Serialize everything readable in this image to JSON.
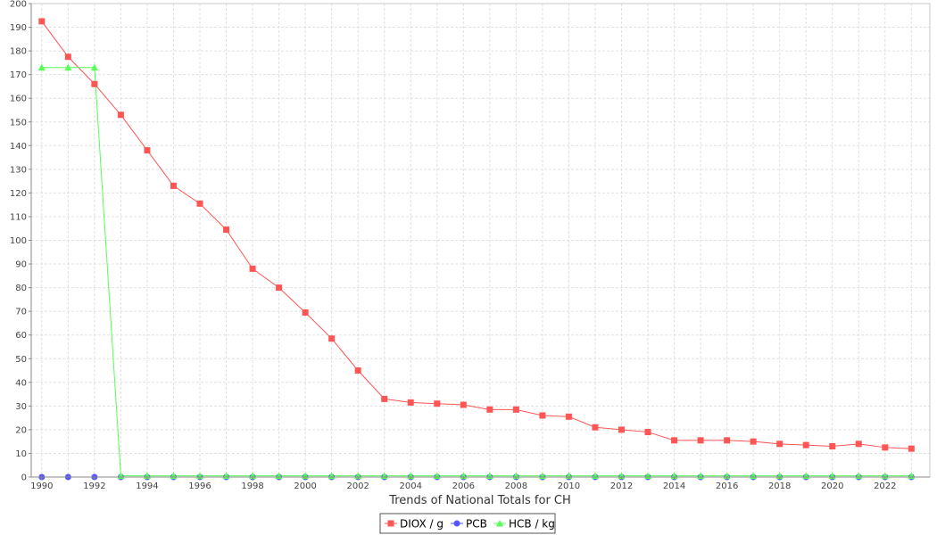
{
  "chart_data": {
    "type": "line",
    "xlabel": "Trends of National Totals for CH",
    "ylabel": "",
    "xlim": [
      1989.6,
      2023.7
    ],
    "ylim": [
      0,
      200
    ],
    "yticks": [
      0,
      10,
      20,
      30,
      40,
      50,
      60,
      70,
      80,
      90,
      100,
      110,
      120,
      130,
      140,
      150,
      160,
      170,
      180,
      190,
      200
    ],
    "xticks": [
      1990,
      1992,
      1994,
      1996,
      1998,
      2000,
      2002,
      2004,
      2006,
      2008,
      2010,
      2012,
      2014,
      2016,
      2018,
      2020,
      2022
    ],
    "grid": true,
    "legend_position": "bottom-center",
    "x": [
      1990,
      1991,
      1992,
      1993,
      1994,
      1995,
      1996,
      1997,
      1998,
      1999,
      2000,
      2001,
      2002,
      2003,
      2004,
      2005,
      2006,
      2007,
      2008,
      2009,
      2010,
      2011,
      2012,
      2013,
      2014,
      2015,
      2016,
      2017,
      2018,
      2019,
      2020,
      2021,
      2022,
      2023
    ],
    "series": [
      {
        "name": "DIOX / g",
        "color": "#ff5555",
        "marker": "square",
        "values": [
          192.5,
          177.5,
          166,
          153,
          138,
          123,
          115.5,
          104.5,
          88,
          80,
          69.5,
          58.5,
          45,
          33,
          31.5,
          31,
          30.5,
          28.5,
          28.5,
          26,
          25.5,
          21,
          20,
          19,
          15.5,
          15.5,
          15.5,
          15,
          14,
          13.5,
          13,
          14,
          12.5,
          12
        ]
      },
      {
        "name": "PCB",
        "color": "#5555ff",
        "marker": "circle",
        "values": [
          0,
          0,
          0,
          0,
          0,
          0,
          0,
          0,
          0,
          0,
          0,
          0,
          0,
          0,
          0,
          0,
          0,
          0,
          0,
          0,
          0,
          0,
          0,
          0,
          0,
          0,
          0,
          0,
          0,
          0,
          0,
          0,
          0,
          0
        ]
      },
      {
        "name": "HCB / kg",
        "color": "#55ff55",
        "marker": "triangle",
        "values": [
          173,
          173,
          173,
          0.5,
          0.5,
          0.5,
          0.5,
          0.5,
          0.5,
          0.5,
          0.5,
          0.5,
          0.5,
          0.5,
          0.5,
          0.5,
          0.5,
          0.5,
          0.5,
          0.5,
          0.5,
          0.5,
          0.5,
          0.5,
          0.5,
          0.5,
          0.5,
          0.5,
          0.5,
          0.5,
          0.5,
          0.5,
          0.5,
          0.5
        ]
      }
    ]
  }
}
